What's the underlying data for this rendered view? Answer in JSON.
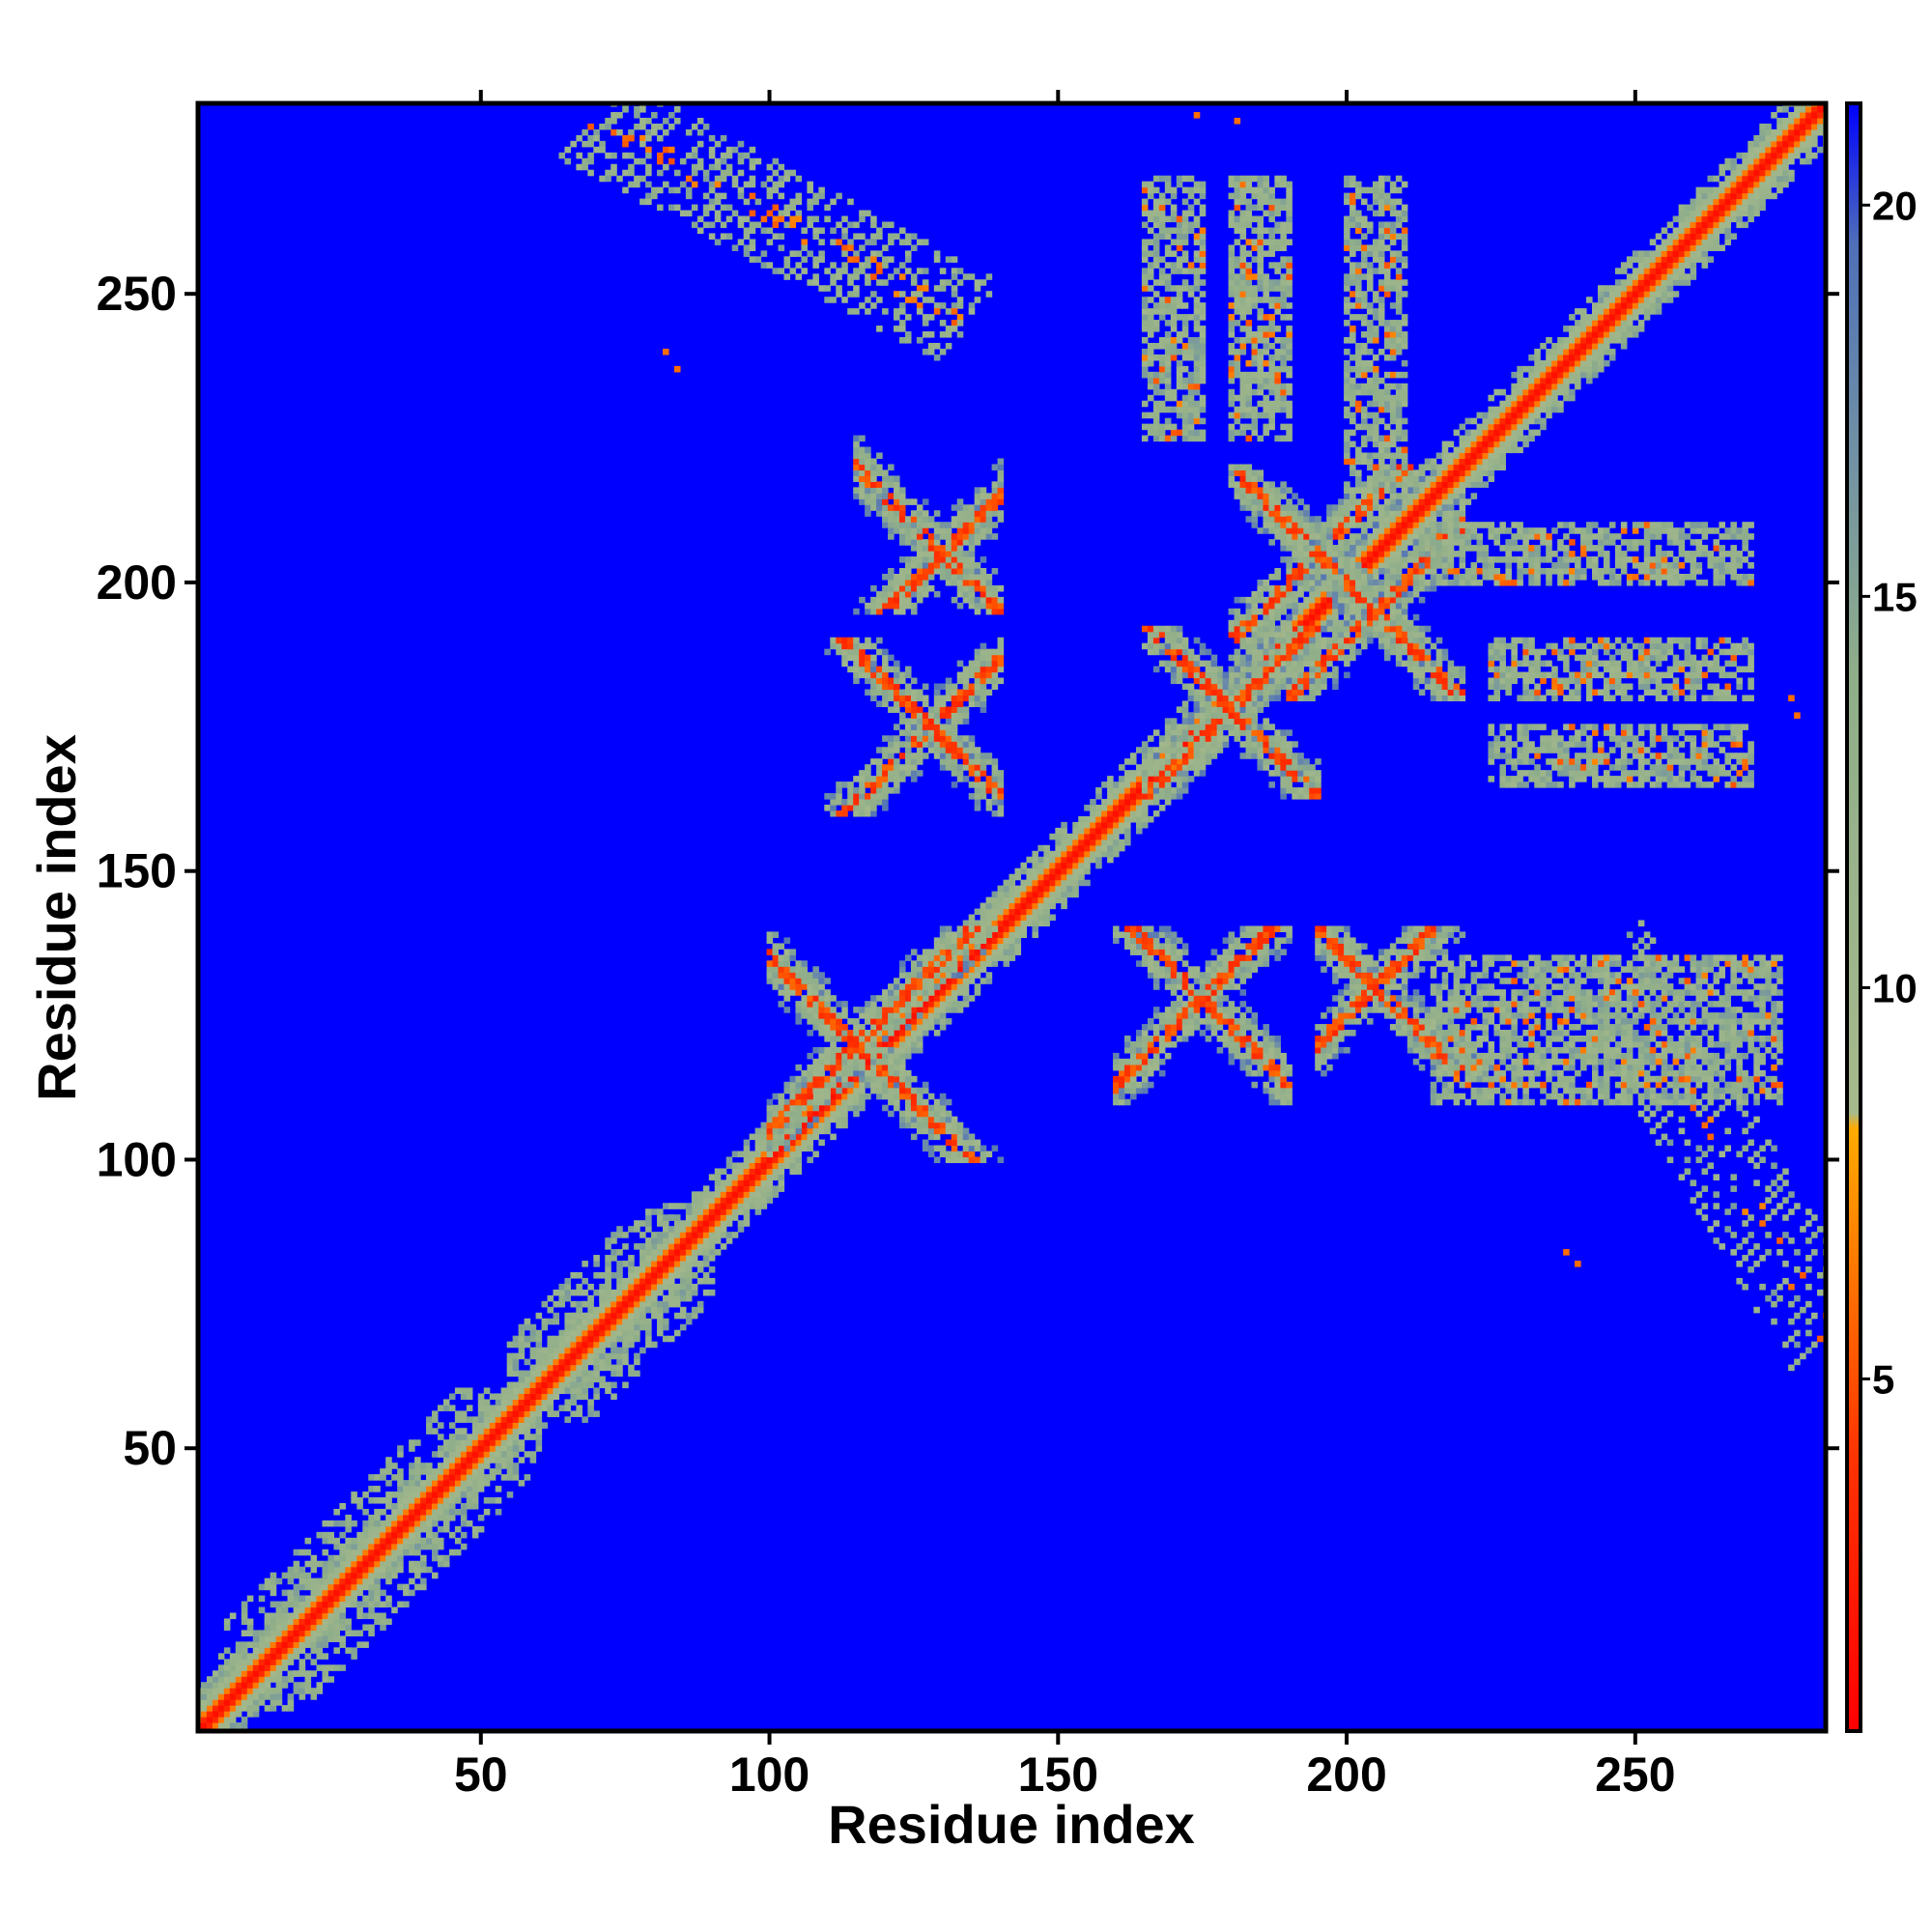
{
  "chart_data": {
    "type": "heatmap",
    "xlabel": "Residue index",
    "ylabel": "Residue index",
    "xlim": [
      1,
      283
    ],
    "ylim": [
      1,
      283
    ],
    "x_ticks": [
      50,
      100,
      150,
      200,
      250
    ],
    "y_ticks": [
      50,
      100,
      150,
      200,
      250
    ],
    "x_tick_labels": [
      "50",
      "100",
      "150",
      "200",
      "250"
    ],
    "y_tick_labels": [
      "50",
      "100",
      "150",
      "200",
      "250"
    ],
    "colorbar": {
      "range": [
        0.5,
        21.3
      ],
      "ticks": [
        5,
        10,
        15,
        20
      ],
      "tick_labels": [
        "5",
        "10",
        "15",
        "20"
      ],
      "stops": [
        {
          "value": 0.5,
          "color": "#ff0000"
        },
        {
          "value": 4,
          "color": "#ff3300"
        },
        {
          "value": 7,
          "color": "#ff8800"
        },
        {
          "value": 8.2,
          "color": "#ffaa00"
        },
        {
          "value": 8.4,
          "color": "#a7b98c"
        },
        {
          "value": 14,
          "color": "#8fae8a"
        },
        {
          "value": 17,
          "color": "#6f8fa6"
        },
        {
          "value": 19.5,
          "color": "#4f6fb8"
        },
        {
          "value": 21.3,
          "color": "#0000ff"
        }
      ]
    },
    "background_value": 21,
    "background_color": "#0000ff",
    "diagonal_contacts": [
      {
        "from": 1,
        "to": 283,
        "core_value": 1.5
      }
    ],
    "helix_bundle_regions": [
      {
        "x": [
          5,
          60
        ],
        "y": [
          5,
          60
        ],
        "orientation": "diagonal"
      },
      {
        "x": [
          55,
          90
        ],
        "y": [
          55,
          92
        ],
        "orientation": "diagonal"
      }
    ],
    "cross_contact_regions": [
      {
        "x_center": 115,
        "y_center": 120,
        "x_span": [
          100,
          140
        ],
        "y_span": [
          100,
          140
        ]
      },
      {
        "x_center": 128,
        "y_center": 175,
        "x_span": [
          110,
          140
        ],
        "y_span": [
          160,
          190
        ]
      },
      {
        "x_center": 175,
        "y_center": 128,
        "x_span": [
          160,
          190
        ],
        "y_span": [
          110,
          140
        ]
      },
      {
        "x_center": 180,
        "y_center": 178,
        "x_span": [
          165,
          195
        ],
        "y_span": [
          163,
          192
        ]
      },
      {
        "x_center": 195,
        "y_center": 205,
        "x_span": [
          180,
          215
        ],
        "y_span": [
          190,
          220
        ]
      },
      {
        "x_center": 205,
        "y_center": 195,
        "x_span": [
          190,
          220
        ],
        "y_span": [
          180,
          215
        ]
      },
      {
        "x_center": 130,
        "y_center": 205,
        "x_span": [
          115,
          140
        ],
        "y_span": [
          195,
          225
        ]
      },
      {
        "x_center": 205,
        "y_center": 130,
        "x_span": [
          195,
          225
        ],
        "y_span": [
          115,
          140
        ]
      }
    ],
    "stripe_regions": [
      {
        "x": [
          165,
          175
        ],
        "y": [
          225,
          270
        ]
      },
      {
        "x": [
          180,
          190
        ],
        "y": [
          225,
          270
        ]
      },
      {
        "x": [
          200,
          210
        ],
        "y": [
          215,
          270
        ]
      },
      {
        "x": [
          225,
          270
        ],
        "y": [
          165,
          175
        ]
      },
      {
        "x": [
          225,
          270
        ],
        "y": [
          180,
          190
        ]
      },
      {
        "x": [
          215,
          270
        ],
        "y": [
          200,
          210
        ]
      },
      {
        "x": [
          215,
          245
        ],
        "y": [
          110,
          135
        ]
      },
      {
        "x": [
          245,
          275
        ],
        "y": [
          110,
          135
        ]
      }
    ],
    "off_diagonal_strands": [
      {
        "x_range": [
          70,
          135
        ],
        "y_range": [
          280,
          245
        ],
        "value": 10
      },
      {
        "x_range": [
          245,
          283
        ],
        "y_range": [
          135,
          70
        ],
        "value": 10
      }
    ],
    "isolated_contacts": [
      {
        "x": 174,
        "y": 281,
        "value": 6
      },
      {
        "x": 181,
        "y": 280,
        "value": 6
      },
      {
        "x": 82,
        "y": 240,
        "value": 6
      },
      {
        "x": 84,
        "y": 237,
        "value": 6
      },
      {
        "x": 277,
        "y": 180,
        "value": 6
      },
      {
        "x": 278,
        "y": 177,
        "value": 6
      },
      {
        "x": 238,
        "y": 84,
        "value": 6
      },
      {
        "x": 240,
        "y": 82,
        "value": 6
      }
    ]
  }
}
